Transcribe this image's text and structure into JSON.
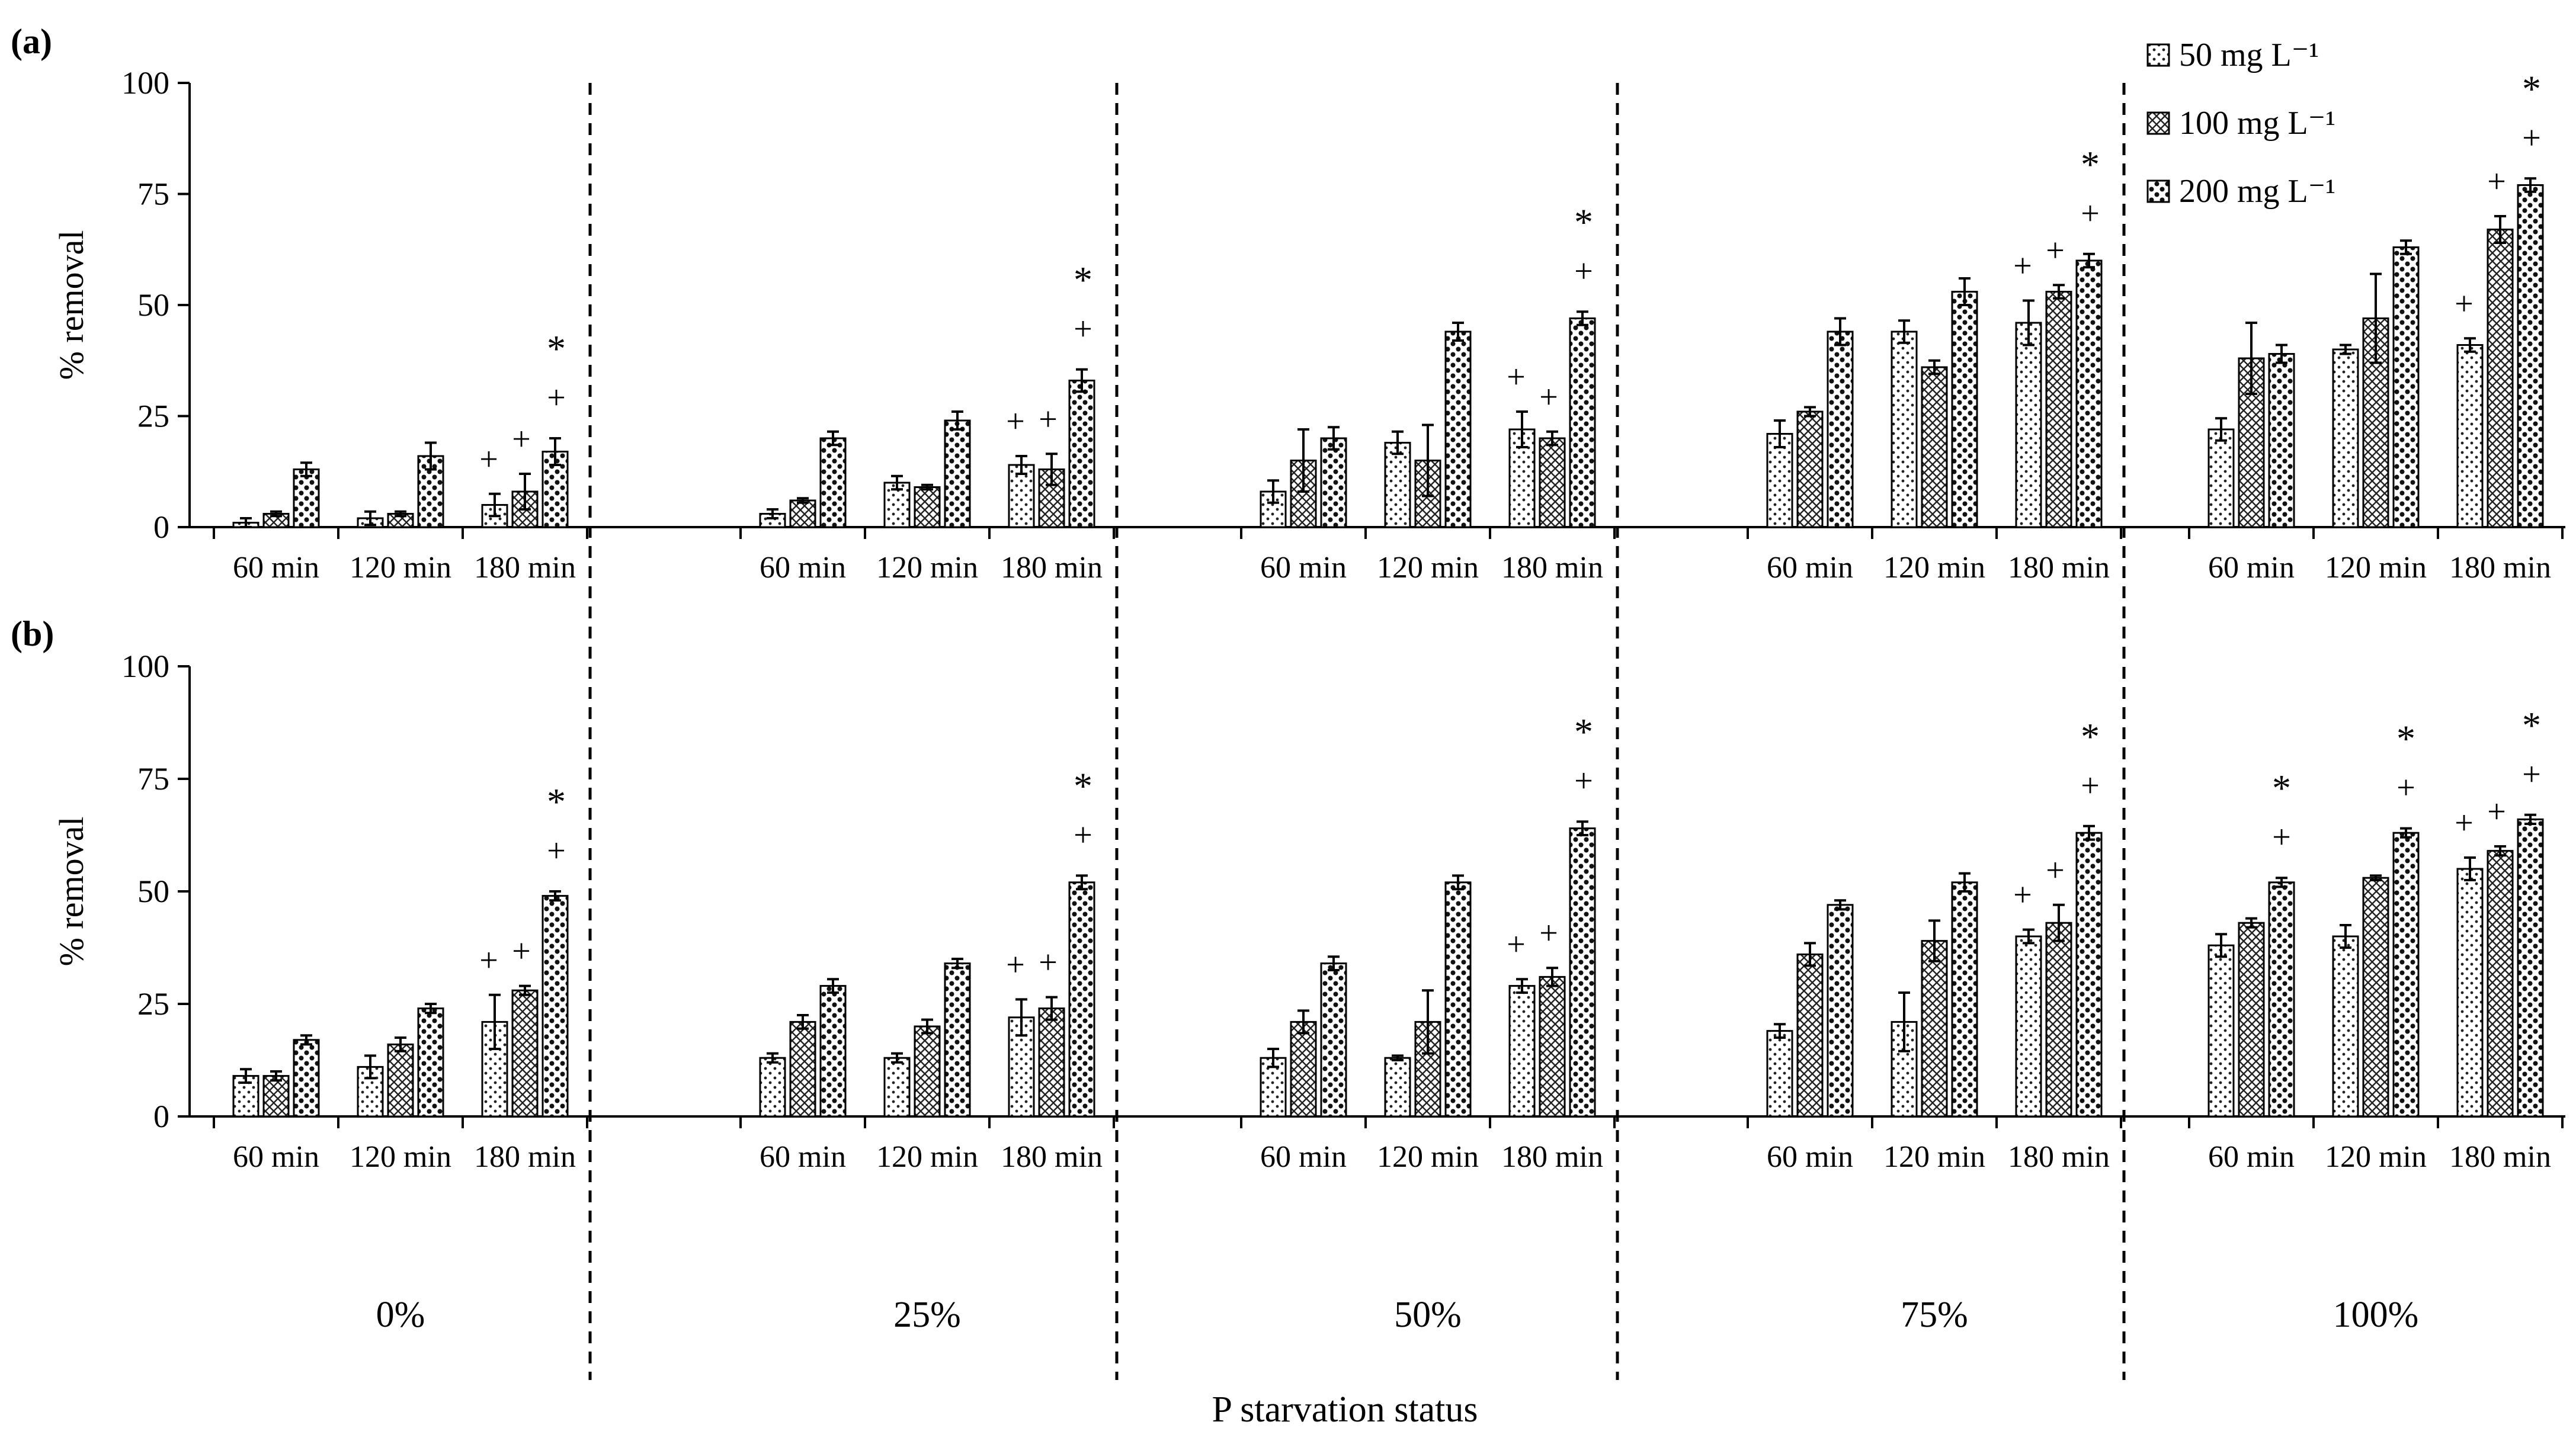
{
  "chart_data": [
    {
      "type": "bar",
      "panel_label": "(a)",
      "ylabel": "% removal",
      "xlabel": "P starvation status",
      "ylim": [
        0,
        100
      ],
      "yticks": [
        "0",
        "25",
        "50",
        "75",
        "100"
      ],
      "groups": [
        "0%",
        "25%",
        "50%",
        "75%",
        "100%"
      ],
      "times": [
        "60 min",
        "120 min",
        "180 min"
      ],
      "series_names": [
        "50 mg L⁻¹",
        "100 mg L⁻¹",
        "200 mg L⁻¹"
      ],
      "values": [
        [
          [
            1,
            3,
            13
          ],
          [
            2,
            3,
            16
          ],
          [
            5,
            8,
            17
          ]
        ],
        [
          [
            3,
            6,
            20
          ],
          [
            10,
            9,
            24
          ],
          [
            14,
            13,
            33
          ]
        ],
        [
          [
            8,
            15,
            20
          ],
          [
            19,
            15,
            44
          ],
          [
            22,
            20,
            47
          ]
        ],
        [
          [
            21,
            26,
            44
          ],
          [
            44,
            36,
            53
          ],
          [
            46,
            53,
            60
          ]
        ],
        [
          [
            22,
            38,
            39
          ],
          [
            40,
            47,
            63
          ],
          [
            41,
            67,
            77
          ]
        ]
      ],
      "errors": [
        [
          [
            1,
            0.5,
            1.5
          ],
          [
            1.5,
            0.5,
            3
          ],
          [
            2.5,
            4,
            3
          ]
        ],
        [
          [
            1,
            0.5,
            1.5
          ],
          [
            1.5,
            0.5,
            2
          ],
          [
            2,
            3.5,
            2.5
          ]
        ],
        [
          [
            2.5,
            7,
            2.5
          ],
          [
            2.5,
            8,
            2
          ],
          [
            4,
            1.5,
            1.5
          ]
        ],
        [
          [
            3,
            1,
            3
          ],
          [
            2.5,
            1.5,
            3
          ],
          [
            5,
            1.5,
            1.5
          ]
        ],
        [
          [
            2.5,
            8,
            2
          ],
          [
            1,
            10,
            1.5
          ],
          [
            1.5,
            3,
            1.5
          ]
        ]
      ],
      "annotations": [
        [
          [
            "+"
          ],
          [
            "+"
          ],
          [
            "+",
            "*"
          ]
        ],
        [
          [
            "+"
          ],
          [
            "+"
          ],
          [
            "+",
            "*"
          ]
        ],
        [
          [
            "+"
          ],
          [
            "+"
          ],
          [
            "+",
            "*"
          ]
        ],
        [
          [
            "+"
          ],
          [
            "+"
          ],
          [
            "+",
            "*"
          ]
        ],
        [
          [
            "+"
          ],
          [
            "+"
          ],
          [
            "+",
            "*"
          ]
        ]
      ]
    },
    {
      "type": "bar",
      "panel_label": "(b)",
      "ylabel": "% removal",
      "xlabel": "P starvation status",
      "ylim": [
        0,
        100
      ],
      "yticks": [
        "0",
        "25",
        "50",
        "75",
        "100"
      ],
      "groups": [
        "0%",
        "25%",
        "50%",
        "75%",
        "100%"
      ],
      "times": [
        "60 min",
        "120 min",
        "180 min"
      ],
      "series_names": [
        "50 mg L⁻¹",
        "100 mg L⁻¹",
        "200 mg L⁻¹"
      ],
      "values": [
        [
          [
            9,
            9,
            17
          ],
          [
            11,
            16,
            24
          ],
          [
            21,
            28,
            49
          ]
        ],
        [
          [
            13,
            21,
            29
          ],
          [
            13,
            20,
            34
          ],
          [
            22,
            24,
            52
          ]
        ],
        [
          [
            13,
            21,
            34
          ],
          [
            13,
            21,
            52
          ],
          [
            29,
            31,
            64
          ]
        ],
        [
          [
            19,
            36,
            47
          ],
          [
            21,
            39,
            52
          ],
          [
            40,
            43,
            63
          ]
        ],
        [
          [
            38,
            43,
            52
          ],
          [
            40,
            53,
            63
          ],
          [
            55,
            59,
            66
          ]
        ]
      ],
      "errors": [
        [
          [
            1.5,
            1,
            1
          ],
          [
            2.5,
            1.5,
            1
          ],
          [
            6,
            1,
            1
          ]
        ],
        [
          [
            1,
            1.5,
            1.5
          ],
          [
            1,
            1.5,
            1
          ],
          [
            4,
            2.5,
            1.5
          ]
        ],
        [
          [
            2,
            2.5,
            1.5
          ],
          [
            0.5,
            7,
            1.5
          ],
          [
            1.5,
            2,
            1.5
          ]
        ],
        [
          [
            1.5,
            2.5,
            1
          ],
          [
            6.5,
            4.5,
            2
          ],
          [
            1.5,
            4,
            1.5
          ]
        ],
        [
          [
            2.5,
            1,
            1
          ],
          [
            2.5,
            0.5,
            1
          ],
          [
            2.5,
            1,
            1
          ]
        ]
      ],
      "annotations": [
        [
          [
            "+"
          ],
          [
            "+"
          ],
          [
            "+",
            "*"
          ]
        ],
        [
          [
            "+"
          ],
          [
            "+"
          ],
          [
            "+",
            "*"
          ]
        ],
        [
          [
            "+"
          ],
          [
            "+"
          ],
          [
            "+",
            "*"
          ]
        ],
        [
          [
            "+"
          ],
          [
            "+"
          ],
          [
            "+",
            "*"
          ]
        ],
        [
          [
            "+",
            "*"
          ],
          [
            "+",
            "*"
          ],
          [
            "+",
            "*"
          ]
        ]
      ]
    }
  ],
  "legend": {
    "items": [
      "50 mg L⁻¹",
      "100 mg L⁻¹",
      "200 mg L⁻¹"
    ],
    "placement": "top-right"
  }
}
